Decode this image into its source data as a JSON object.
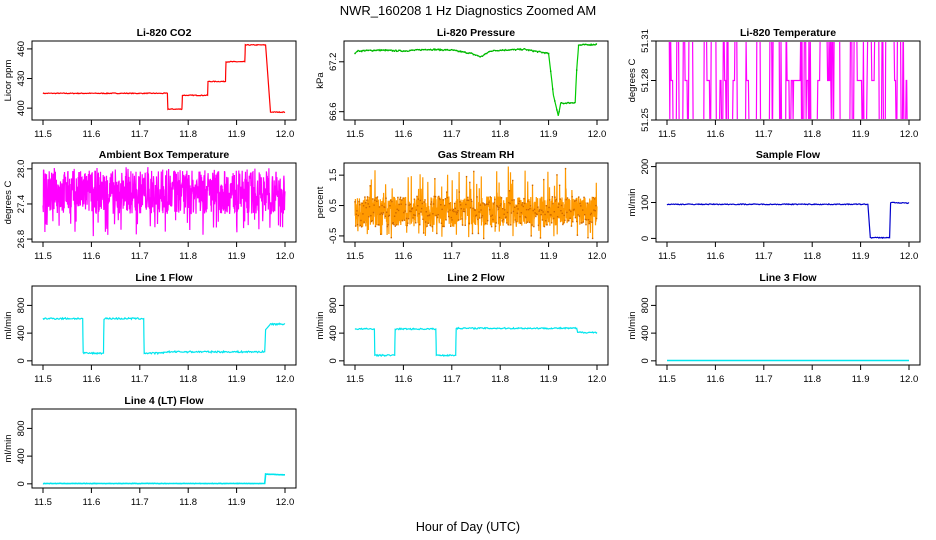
{
  "figure": {
    "title": "NWR_160208  1 Hz Diagnostics Zoomed AM",
    "xlabel": "Hour of Day (UTC)"
  },
  "chart_data": [
    {
      "id": "co2",
      "type": "line",
      "title": "Li-820 CO2",
      "ylabel": "Licor ppm",
      "color": "#ff0000",
      "xlim": [
        11.5,
        12.0
      ],
      "ylim": [
        388,
        468
      ],
      "xticks": [
        "11.5",
        "11.6",
        "11.7",
        "11.8",
        "11.9",
        "12.0"
      ],
      "yticks": [
        {
          "v": 400,
          "label": "400"
        },
        {
          "v": 430,
          "label": "430"
        },
        {
          "v": 460,
          "label": "460"
        }
      ],
      "series": [
        {
          "x": [
            11.5,
            11.757,
            11.758,
            11.787,
            11.788,
            11.84,
            11.841,
            11.877,
            11.878,
            11.917,
            11.918,
            11.96,
            11.97,
            12.0
          ],
          "y": [
            415,
            415,
            399,
            399,
            413,
            413,
            427,
            427,
            447,
            447,
            464,
            464,
            396,
            396
          ]
        }
      ]
    },
    {
      "id": "pressure",
      "type": "line",
      "title": "Li-820 Pressure",
      "ylabel": "kPa",
      "color": "#00cc00",
      "xlim": [
        11.5,
        12.0
      ],
      "ylim": [
        66.5,
        67.45
      ],
      "xticks": [
        "11.5",
        "11.6",
        "11.7",
        "11.8",
        "11.9",
        "12.0"
      ],
      "yticks": [
        {
          "v": 66.6,
          "label": "66.6"
        },
        {
          "v": 67.2,
          "label": "67.2"
        }
      ],
      "series": [
        {
          "x": [
            11.5,
            11.505,
            11.55,
            11.6,
            11.65,
            11.7,
            11.74,
            11.76,
            11.78,
            11.8,
            11.85,
            11.9,
            11.91,
            11.92,
            11.925,
            11.955,
            11.958,
            11.962,
            12.0
          ],
          "y": [
            67.3,
            67.33,
            67.34,
            67.33,
            67.35,
            67.34,
            67.3,
            67.26,
            67.33,
            67.34,
            67.35,
            67.3,
            66.8,
            66.55,
            66.7,
            66.71,
            67.1,
            67.4,
            67.41
          ]
        }
      ]
    },
    {
      "id": "licor_temp",
      "type": "line",
      "title": "Li-820 Temperature",
      "ylabel": "degrees C",
      "color": "#ff00ff",
      "xlim": [
        11.5,
        12.0
      ],
      "ylim": [
        51.25,
        51.31
      ],
      "xticks": [
        "11.5",
        "11.6",
        "11.7",
        "11.8",
        "11.9",
        "12.0"
      ],
      "yticks": [
        {
          "v": 51.25,
          "label": "51.25"
        },
        {
          "v": 51.28,
          "label": "51.28"
        },
        {
          "v": 51.31,
          "label": "51.31"
        }
      ],
      "series": [
        {
          "x": [
            11.5,
            12.0
          ],
          "y": [
            51.28,
            51.28
          ]
        }
      ]
    },
    {
      "id": "box_temp",
      "type": "line",
      "title": "Ambient Box Temperature",
      "ylabel": "degrees C",
      "color": "#ff00ff",
      "xlim": [
        11.5,
        12.0
      ],
      "ylim": [
        26.75,
        28.1
      ],
      "xticks": [
        "11.5",
        "11.6",
        "11.7",
        "11.8",
        "11.9",
        "12.0"
      ],
      "yticks": [
        {
          "v": 26.8,
          "label": "26.8"
        },
        {
          "v": 27.4,
          "label": "27.4"
        },
        {
          "v": 28.0,
          "label": "28.0"
        }
      ],
      "series": [
        {
          "x": [
            11.5,
            12.0
          ],
          "y": [
            27.6,
            27.6
          ]
        }
      ]
    },
    {
      "id": "rh",
      "type": "line",
      "title": "Gas Stream RH",
      "ylabel": "percent",
      "color": "#ff9900",
      "xlim": [
        11.5,
        12.0
      ],
      "ylim": [
        -0.7,
        1.9
      ],
      "xticks": [
        "11.5",
        "11.6",
        "11.7",
        "11.8",
        "11.9",
        "12.0"
      ],
      "yticks": [
        {
          "v": -0.5,
          "label": "-0.5"
        },
        {
          "v": 0.5,
          "label": "0.5"
        },
        {
          "v": 1.5,
          "label": "1.5"
        }
      ],
      "series": [
        {
          "x": [
            11.5,
            12.0
          ],
          "y": [
            0.3,
            0.3
          ]
        }
      ]
    },
    {
      "id": "sample_flow",
      "type": "line",
      "title": "Sample Flow",
      "ylabel": "ml/min",
      "color": "#0000cc",
      "xlim": [
        11.5,
        12.0
      ],
      "ylim": [
        -10,
        210
      ],
      "xticks": [
        "11.5",
        "11.6",
        "11.7",
        "11.8",
        "11.9",
        "12.0"
      ],
      "yticks": [
        {
          "v": 0,
          "label": "0"
        },
        {
          "v": 100,
          "label": "100"
        },
        {
          "v": 200,
          "label": "200"
        }
      ],
      "series": [
        {
          "x": [
            11.5,
            11.915,
            11.92,
            11.96,
            11.962,
            12.0
          ],
          "y": [
            95,
            95,
            2,
            2,
            100,
            98
          ]
        }
      ]
    },
    {
      "id": "line1",
      "type": "line",
      "title": "Line 1 Flow",
      "ylabel": "ml/min",
      "color": "#00e5ee",
      "xlim": [
        11.5,
        12.0
      ],
      "ylim": [
        -60,
        1080
      ],
      "xticks": [
        "11.5",
        "11.6",
        "11.7",
        "11.8",
        "11.9",
        "12.0"
      ],
      "yticks": [
        {
          "v": 0,
          "label": "0"
        },
        {
          "v": 400,
          "label": "400"
        },
        {
          "v": 800,
          "label": "800"
        }
      ],
      "series": [
        {
          "x": [
            11.5,
            11.582,
            11.583,
            11.625,
            11.626,
            11.708,
            11.709,
            11.749,
            11.75,
            11.958,
            11.96,
            11.97,
            12.0
          ],
          "y": [
            610,
            610,
            110,
            110,
            610,
            610,
            110,
            110,
            130,
            130,
            450,
            530,
            530
          ]
        }
      ]
    },
    {
      "id": "line2",
      "type": "line",
      "title": "Line 2 Flow",
      "ylabel": "ml/min",
      "color": "#00e5ee",
      "xlim": [
        11.5,
        12.0
      ],
      "ylim": [
        -60,
        1080
      ],
      "xticks": [
        "11.5",
        "11.6",
        "11.7",
        "11.8",
        "11.9",
        "12.0"
      ],
      "yticks": [
        {
          "v": 0,
          "label": "0"
        },
        {
          "v": 400,
          "label": "400"
        },
        {
          "v": 800,
          "label": "800"
        }
      ],
      "series": [
        {
          "x": [
            11.5,
            11.54,
            11.541,
            11.582,
            11.583,
            11.667,
            11.668,
            11.708,
            11.709,
            11.958,
            11.96,
            12.0
          ],
          "y": [
            460,
            460,
            80,
            80,
            460,
            460,
            80,
            80,
            470,
            470,
            410,
            410
          ]
        }
      ]
    },
    {
      "id": "line3",
      "type": "line",
      "title": "Line 3 Flow",
      "ylabel": "ml/min",
      "color": "#00e5ee",
      "xlim": [
        11.5,
        12.0
      ],
      "ylim": [
        -60,
        1080
      ],
      "xticks": [
        "11.5",
        "11.6",
        "11.7",
        "11.8",
        "11.9",
        "12.0"
      ],
      "yticks": [
        {
          "v": 0,
          "label": "0"
        },
        {
          "v": 400,
          "label": "400"
        },
        {
          "v": 800,
          "label": "800"
        }
      ],
      "series": [
        {
          "x": [
            11.5,
            12.0
          ],
          "y": [
            5,
            5
          ]
        }
      ]
    },
    {
      "id": "line4",
      "type": "line",
      "title": "Line 4 (LT) Flow",
      "ylabel": "ml/min",
      "color": "#00e5ee",
      "xlim": [
        11.5,
        12.0
      ],
      "ylim": [
        -60,
        1080
      ],
      "xticks": [
        "11.5",
        "11.6",
        "11.7",
        "11.8",
        "11.9",
        "12.0"
      ],
      "yticks": [
        {
          "v": 0,
          "label": "0"
        },
        {
          "v": 400,
          "label": "400"
        },
        {
          "v": 800,
          "label": "800"
        }
      ],
      "series": [
        {
          "x": [
            11.5,
            11.958,
            11.96,
            12.0
          ],
          "y": [
            5,
            5,
            140,
            130
          ]
        }
      ]
    }
  ]
}
